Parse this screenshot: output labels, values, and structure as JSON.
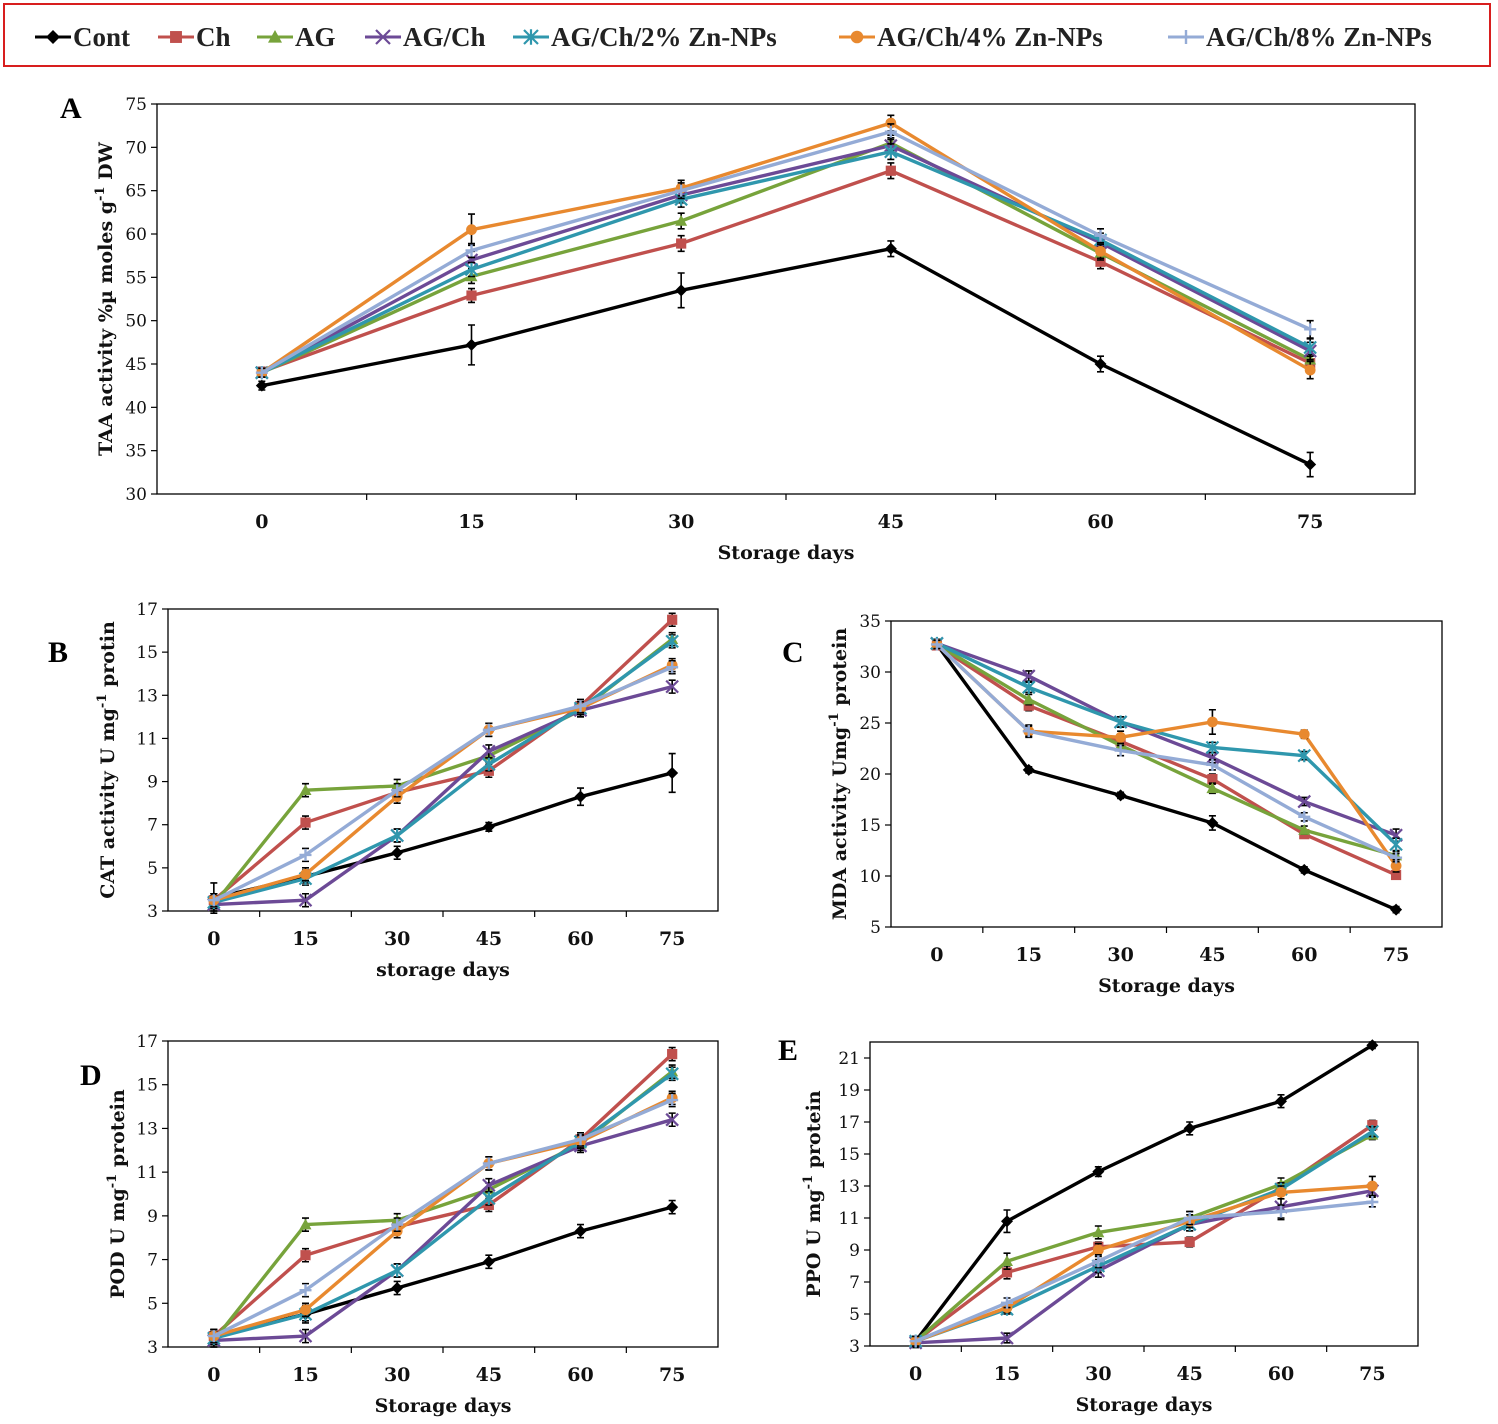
{
  "legend": [
    {
      "name": "Cont",
      "color": "#000000",
      "marker": "diamond"
    },
    {
      "name": "Ch",
      "color": "#c0504d",
      "marker": "square"
    },
    {
      "name": "AG",
      "color": "#77a33b",
      "marker": "triangle"
    },
    {
      "name": "AG/Ch",
      "color": "#6c4a96",
      "marker": "x"
    },
    {
      "name": "AG/Ch/2% Zn-NPs",
      "color": "#2f97ad",
      "marker": "star"
    },
    {
      "name": "AG/Ch/4% Zn-NPs",
      "color": "#e8892f",
      "marker": "circle"
    },
    {
      "name": "AG/Ch/8% Zn-NPs",
      "color": "#94abd6",
      "marker": "plus"
    }
  ],
  "chart_data": [
    {
      "panel": "A",
      "type": "line",
      "ylabel_parts": [
        "TAA activity %µ moles g",
        "-1",
        " DW"
      ],
      "xlabel": "Storage days",
      "categories": [
        "0",
        "15",
        "30",
        "45",
        "60",
        "75"
      ],
      "ylim": [
        30,
        75
      ],
      "ystep": 5,
      "series": [
        {
          "name": "Cont",
          "values": [
            42.5,
            47.2,
            53.5,
            58.3,
            45.0,
            33.4
          ],
          "err": [
            0.5,
            2.3,
            2.0,
            0.9,
            0.9,
            1.4
          ]
        },
        {
          "name": "Ch",
          "values": [
            44.1,
            52.9,
            58.9,
            67.3,
            56.8,
            45.1
          ],
          "err": [
            0.5,
            0.8,
            0.9,
            0.9,
            0.8,
            1.0
          ]
        },
        {
          "name": "AG",
          "values": [
            44.0,
            55.1,
            61.5,
            70.5,
            57.8,
            45.5
          ],
          "err": [
            0.5,
            0.8,
            0.9,
            0.9,
            0.8,
            1.0
          ]
        },
        {
          "name": "AG/Ch",
          "values": [
            44.0,
            57.0,
            64.5,
            70.2,
            59.0,
            46.5
          ],
          "err": [
            0.5,
            1.0,
            0.9,
            0.9,
            0.8,
            1.0
          ]
        },
        {
          "name": "AG/Ch/2% Zn-NPs",
          "values": [
            44.0,
            55.9,
            64.0,
            69.5,
            59.3,
            46.9
          ],
          "err": [
            0.5,
            0.8,
            0.9,
            0.9,
            0.8,
            1.0
          ]
        },
        {
          "name": "AG/Ch/4% Zn-NPs",
          "values": [
            44.0,
            60.5,
            65.3,
            72.8,
            58.0,
            44.3
          ],
          "err": [
            0.5,
            1.8,
            0.9,
            0.9,
            0.8,
            1.0
          ]
        },
        {
          "name": "AG/Ch/8% Zn-NPs",
          "values": [
            44.0,
            58.1,
            65.0,
            71.8,
            59.8,
            49.0
          ],
          "err": [
            0.5,
            0.8,
            0.9,
            0.9,
            0.8,
            1.0
          ]
        }
      ]
    },
    {
      "panel": "B",
      "type": "line",
      "ylabel_parts": [
        "CAT activity U mg",
        "-1",
        " protin"
      ],
      "xlabel": "storage days",
      "categories": [
        "0",
        "15",
        "30",
        "45",
        "60",
        "75"
      ],
      "ylim": [
        3,
        17
      ],
      "ystep": 2,
      "series": [
        {
          "name": "Cont",
          "values": [
            3.6,
            4.6,
            5.7,
            6.9,
            8.3,
            9.4
          ],
          "err": [
            0.7,
            0.3,
            0.3,
            0.2,
            0.4,
            0.9
          ]
        },
        {
          "name": "Ch",
          "values": [
            3.5,
            7.1,
            8.5,
            9.5,
            12.5,
            16.5
          ],
          "err": [
            0.3,
            0.3,
            0.3,
            0.3,
            0.3,
            0.3
          ]
        },
        {
          "name": "AG",
          "values": [
            3.3,
            8.6,
            8.8,
            10.2,
            12.3,
            15.6
          ],
          "err": [
            0.3,
            0.3,
            0.3,
            0.3,
            0.3,
            0.3
          ]
        },
        {
          "name": "AG/Ch",
          "values": [
            3.3,
            3.5,
            6.5,
            10.4,
            12.3,
            13.4
          ],
          "err": [
            0.3,
            0.3,
            0.3,
            0.3,
            0.3,
            0.3
          ]
        },
        {
          "name": "AG/Ch/2% Zn-NPs",
          "values": [
            3.4,
            4.5,
            6.5,
            9.8,
            12.4,
            15.5
          ],
          "err": [
            0.3,
            0.3,
            0.3,
            0.3,
            0.3,
            0.3
          ]
        },
        {
          "name": "AG/Ch/4% Zn-NPs",
          "values": [
            3.5,
            4.7,
            8.3,
            11.4,
            12.4,
            14.4
          ],
          "err": [
            0.3,
            0.3,
            0.3,
            0.3,
            0.3,
            0.3
          ]
        },
        {
          "name": "AG/Ch/8% Zn-NPs",
          "values": [
            3.5,
            5.6,
            8.6,
            11.4,
            12.5,
            14.3
          ],
          "err": [
            0.3,
            0.3,
            0.3,
            0.3,
            0.3,
            0.3
          ]
        }
      ]
    },
    {
      "panel": "C",
      "type": "line",
      "ylabel_parts": [
        "MDA  activity  Umg",
        "-1",
        " protein"
      ],
      "xlabel": "Storage days",
      "categories": [
        "0",
        "15",
        "30",
        "45",
        "60",
        "75"
      ],
      "ylim": [
        5,
        35
      ],
      "ystep": 5,
      "series": [
        {
          "name": "Cont",
          "values": [
            32.7,
            20.4,
            17.9,
            15.2,
            10.6,
            6.7
          ],
          "err": [
            0.4,
            0.3,
            0.3,
            0.7,
            0.3,
            0.3
          ]
        },
        {
          "name": "Ch",
          "values": [
            32.6,
            26.7,
            23.2,
            19.5,
            14.1,
            10.1
          ],
          "err": [
            0.4,
            0.5,
            0.5,
            0.5,
            0.4,
            0.4
          ]
        },
        {
          "name": "AG",
          "values": [
            32.7,
            27.3,
            22.8,
            18.6,
            14.5,
            12.0
          ],
          "err": [
            0.4,
            0.5,
            0.5,
            0.5,
            0.4,
            0.4
          ]
        },
        {
          "name": "AG/Ch",
          "values": [
            32.8,
            29.6,
            25.1,
            21.6,
            17.3,
            14.0
          ],
          "err": [
            0.4,
            0.5,
            0.5,
            0.5,
            0.4,
            0.6
          ]
        },
        {
          "name": "AG/Ch/2% Zn-NPs",
          "values": [
            32.8,
            28.5,
            25.1,
            22.6,
            21.8,
            13.1
          ],
          "err": [
            0.4,
            0.5,
            0.5,
            0.5,
            0.4,
            0.6
          ]
        },
        {
          "name": "AG/Ch/4% Zn-NPs",
          "values": [
            32.7,
            24.2,
            23.6,
            25.1,
            23.9,
            11.0
          ],
          "err": [
            0.4,
            0.6,
            0.6,
            1.2,
            0.4,
            0.6
          ]
        },
        {
          "name": "AG/Ch/8% Zn-NPs",
          "values": [
            32.7,
            24.2,
            22.3,
            20.9,
            15.8,
            11.8
          ],
          "err": [
            0.4,
            0.5,
            0.5,
            0.5,
            0.4,
            0.4
          ]
        }
      ]
    },
    {
      "panel": "D",
      "type": "line",
      "ylabel_parts": [
        "POD U mg",
        "-1",
        " protein"
      ],
      "xlabel": "Storage days",
      "categories": [
        "0",
        "15",
        "30",
        "45",
        "60",
        "75"
      ],
      "ylim": [
        3,
        17
      ],
      "ystep": 2,
      "series": [
        {
          "name": "Cont",
          "values": [
            3.5,
            4.5,
            5.7,
            6.9,
            8.3,
            9.4
          ],
          "err": [
            0.3,
            0.4,
            0.3,
            0.3,
            0.3,
            0.3
          ]
        },
        {
          "name": "Ch",
          "values": [
            3.5,
            7.2,
            8.5,
            9.5,
            12.5,
            16.4
          ],
          "err": [
            0.3,
            0.3,
            0.3,
            0.3,
            0.3,
            0.3
          ]
        },
        {
          "name": "AG",
          "values": [
            3.3,
            8.6,
            8.8,
            10.2,
            12.3,
            15.6
          ],
          "err": [
            0.3,
            0.3,
            0.3,
            0.3,
            0.3,
            0.3
          ]
        },
        {
          "name": "AG/Ch",
          "values": [
            3.3,
            3.5,
            6.5,
            10.4,
            12.2,
            13.4
          ],
          "err": [
            0.3,
            0.3,
            0.3,
            0.3,
            0.3,
            0.3
          ]
        },
        {
          "name": "AG/Ch/2% Zn-NPs",
          "values": [
            3.4,
            4.5,
            6.5,
            9.8,
            12.4,
            15.5
          ],
          "err": [
            0.3,
            0.3,
            0.3,
            0.3,
            0.3,
            0.3
          ]
        },
        {
          "name": "AG/Ch/4% Zn-NPs",
          "values": [
            3.5,
            4.7,
            8.3,
            11.4,
            12.4,
            14.4
          ],
          "err": [
            0.3,
            0.3,
            0.3,
            0.3,
            0.3,
            0.3
          ]
        },
        {
          "name": "AG/Ch/8% Zn-NPs",
          "values": [
            3.5,
            5.6,
            8.6,
            11.4,
            12.5,
            14.3
          ],
          "err": [
            0.3,
            0.3,
            0.3,
            0.3,
            0.3,
            0.3
          ]
        }
      ]
    },
    {
      "panel": "E",
      "type": "line",
      "ylabel_parts": [
        "PPO U mg",
        "-1",
        " protein"
      ],
      "xlabel": "Storage days",
      "categories": [
        "0",
        "15",
        "30",
        "45",
        "60",
        "75"
      ],
      "ylim": [
        3,
        22
      ],
      "ystep": 2,
      "series": [
        {
          "name": "Cont",
          "values": [
            3.3,
            10.8,
            13.9,
            16.6,
            18.3,
            21.8
          ],
          "err": [
            0.3,
            0.7,
            0.3,
            0.4,
            0.4,
            0.2
          ]
        },
        {
          "name": "Ch",
          "values": [
            3.3,
            7.6,
            9.2,
            9.5,
            12.9,
            16.8
          ],
          "err": [
            0.3,
            0.4,
            0.3,
            0.3,
            0.3,
            0.3
          ]
        },
        {
          "name": "AG",
          "values": [
            3.3,
            8.3,
            10.1,
            11.0,
            13.1,
            16.2
          ],
          "err": [
            0.3,
            0.5,
            0.4,
            0.4,
            0.4,
            0.3
          ]
        },
        {
          "name": "AG/Ch",
          "values": [
            3.2,
            3.5,
            7.7,
            10.6,
            11.7,
            12.7
          ],
          "err": [
            0.3,
            0.3,
            0.4,
            0.4,
            0.8,
            0.3
          ]
        },
        {
          "name": "AG/Ch/2% Zn-NPs",
          "values": [
            3.3,
            5.3,
            8.0,
            10.6,
            12.8,
            16.4
          ],
          "err": [
            0.3,
            0.3,
            0.4,
            0.4,
            0.4,
            0.3
          ]
        },
        {
          "name": "AG/Ch/4% Zn-NPs",
          "values": [
            3.3,
            5.4,
            9.0,
            10.8,
            12.6,
            13.0
          ],
          "err": [
            0.3,
            0.3,
            0.4,
            0.4,
            0.4,
            0.6
          ]
        },
        {
          "name": "AG/Ch/8% Zn-NPs",
          "values": [
            3.3,
            5.7,
            8.3,
            11.0,
            11.4,
            12.0
          ],
          "err": [
            0.3,
            0.3,
            0.4,
            0.4,
            0.4,
            0.3
          ]
        }
      ]
    }
  ]
}
